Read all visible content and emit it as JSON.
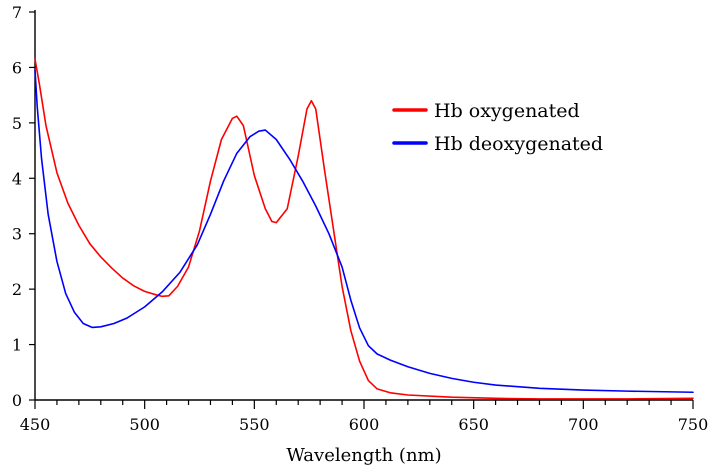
{
  "chart_data": {
    "type": "line",
    "title": "",
    "xlabel": "Wavelength (nm)",
    "ylabel": "",
    "xlim": [
      450,
      750
    ],
    "ylim": [
      0,
      7
    ],
    "x_ticks": [
      450,
      500,
      550,
      600,
      650,
      700,
      750
    ],
    "y_ticks": [
      0,
      1,
      2,
      3,
      4,
      5,
      6,
      7
    ],
    "x_minor_step": 10,
    "legend_position": "top-right",
    "series": [
      {
        "name": "Hb oxygenated",
        "color": "#ff0000",
        "points": [
          [
            450,
            6.15
          ],
          [
            452,
            5.7
          ],
          [
            455,
            4.95
          ],
          [
            460,
            4.1
          ],
          [
            465,
            3.55
          ],
          [
            470,
            3.15
          ],
          [
            475,
            2.82
          ],
          [
            480,
            2.58
          ],
          [
            485,
            2.38
          ],
          [
            490,
            2.2
          ],
          [
            495,
            2.06
          ],
          [
            500,
            1.96
          ],
          [
            505,
            1.9
          ],
          [
            508,
            1.87
          ],
          [
            511,
            1.88
          ],
          [
            515,
            2.05
          ],
          [
            520,
            2.4
          ],
          [
            525,
            3.05
          ],
          [
            530,
            3.95
          ],
          [
            535,
            4.7
          ],
          [
            540,
            5.08
          ],
          [
            542,
            5.12
          ],
          [
            545,
            4.95
          ],
          [
            550,
            4.05
          ],
          [
            555,
            3.45
          ],
          [
            558,
            3.22
          ],
          [
            560,
            3.2
          ],
          [
            565,
            3.45
          ],
          [
            570,
            4.4
          ],
          [
            574,
            5.25
          ],
          [
            576,
            5.4
          ],
          [
            578,
            5.25
          ],
          [
            582,
            4.15
          ],
          [
            586,
            3.1
          ],
          [
            590,
            2.05
          ],
          [
            594,
            1.25
          ],
          [
            598,
            0.7
          ],
          [
            602,
            0.35
          ],
          [
            606,
            0.2
          ],
          [
            612,
            0.13
          ],
          [
            620,
            0.09
          ],
          [
            640,
            0.05
          ],
          [
            660,
            0.03
          ],
          [
            680,
            0.02
          ],
          [
            700,
            0.02
          ],
          [
            720,
            0.02
          ],
          [
            750,
            0.03
          ]
        ]
      },
      {
        "name": "Hb deoxygenated",
        "color": "#0000ff",
        "points": [
          [
            450,
            5.95
          ],
          [
            451,
            5.3
          ],
          [
            453,
            4.35
          ],
          [
            456,
            3.35
          ],
          [
            460,
            2.5
          ],
          [
            464,
            1.92
          ],
          [
            468,
            1.58
          ],
          [
            472,
            1.38
          ],
          [
            476,
            1.31
          ],
          [
            480,
            1.32
          ],
          [
            486,
            1.38
          ],
          [
            492,
            1.48
          ],
          [
            500,
            1.68
          ],
          [
            508,
            1.95
          ],
          [
            516,
            2.3
          ],
          [
            524,
            2.8
          ],
          [
            530,
            3.35
          ],
          [
            536,
            3.95
          ],
          [
            542,
            4.45
          ],
          [
            548,
            4.75
          ],
          [
            552,
            4.85
          ],
          [
            555,
            4.87
          ],
          [
            560,
            4.7
          ],
          [
            566,
            4.35
          ],
          [
            572,
            3.95
          ],
          [
            578,
            3.5
          ],
          [
            584,
            3.0
          ],
          [
            590,
            2.4
          ],
          [
            594,
            1.8
          ],
          [
            598,
            1.3
          ],
          [
            602,
            0.98
          ],
          [
            606,
            0.83
          ],
          [
            612,
            0.72
          ],
          [
            620,
            0.6
          ],
          [
            630,
            0.48
          ],
          [
            640,
            0.39
          ],
          [
            650,
            0.32
          ],
          [
            660,
            0.27
          ],
          [
            680,
            0.21
          ],
          [
            700,
            0.18
          ],
          [
            720,
            0.16
          ],
          [
            750,
            0.14
          ]
        ]
      }
    ]
  }
}
